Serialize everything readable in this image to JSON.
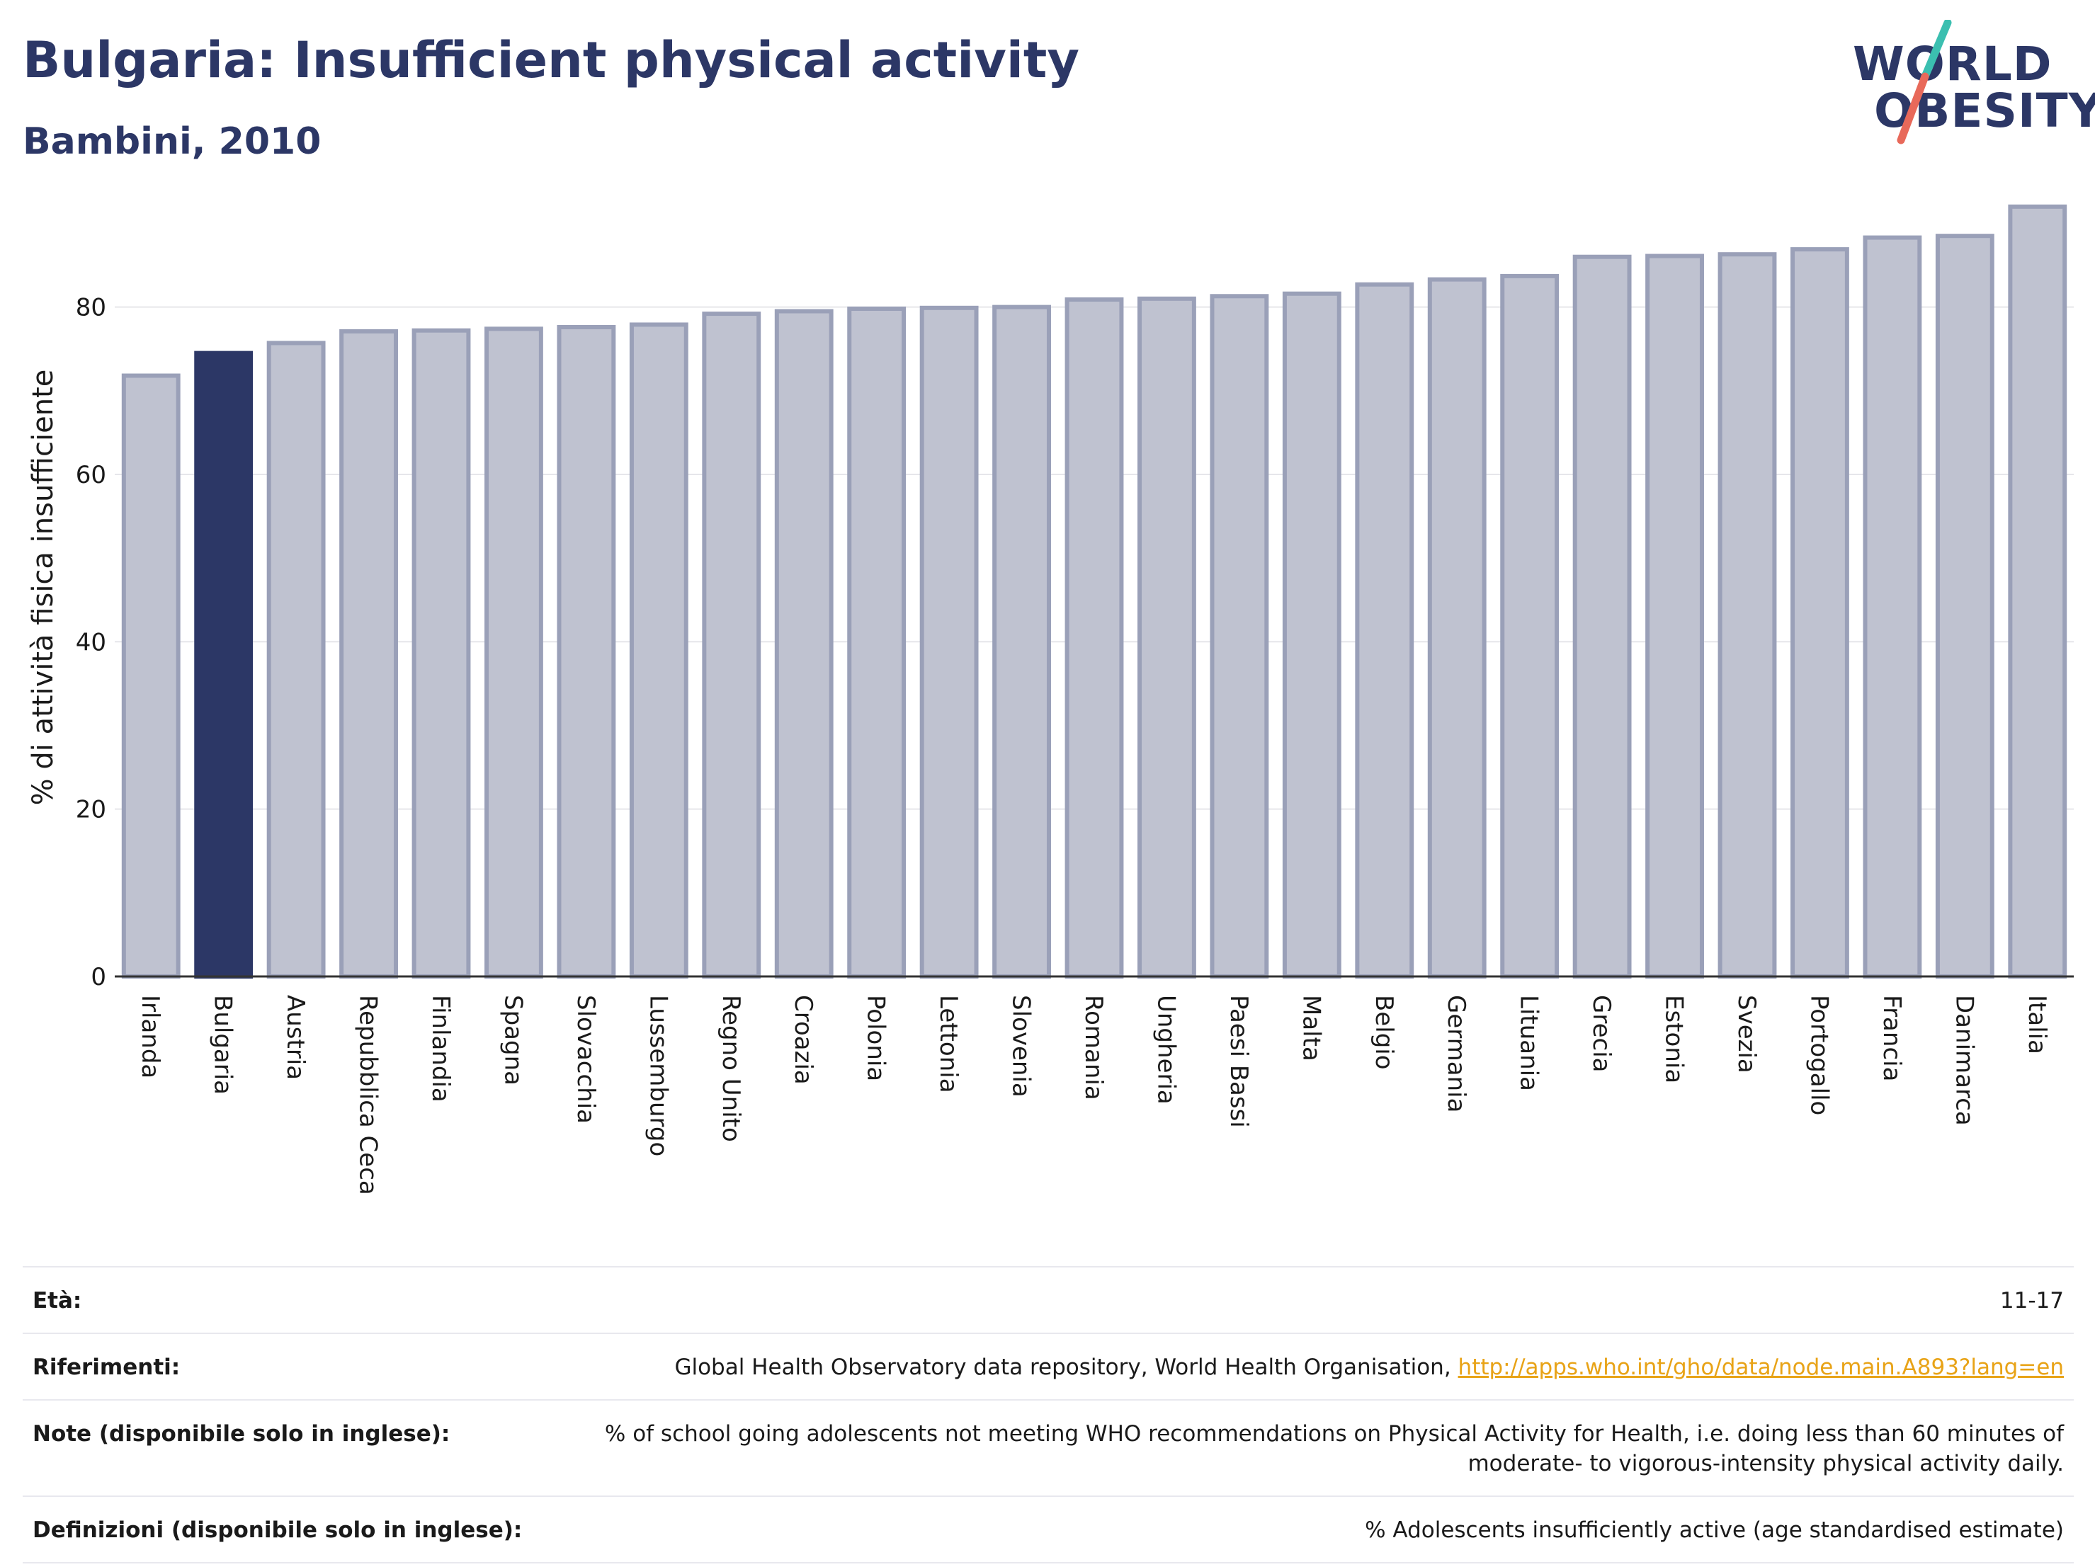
{
  "header": {
    "title": "Bulgaria: Insufficient physical activity",
    "subtitle": "Bambini, 2010"
  },
  "logo": {
    "line1": "WORLD",
    "line2": "OBESITY",
    "colors": {
      "teal": "#3bbfb0",
      "coral": "#e8695a",
      "navy": "#2c3766"
    }
  },
  "chart_data": {
    "type": "bar",
    "title": "Bulgaria: Insufficient physical activity",
    "subtitle": "Bambini, 2010",
    "ylabel": "% di attività fisica insufficiente",
    "xlabel": "",
    "ylim": [
      0,
      93
    ],
    "yticks": [
      0,
      20,
      40,
      60,
      80
    ],
    "grid": true,
    "highlight": "Bulgaria",
    "colors": {
      "bar": "#bfc2d0",
      "bar_edge": "#9aa0b8",
      "highlight": "#2c3766"
    },
    "categories": [
      "Irlanda",
      "Bulgaria",
      "Austria",
      "Repubblica Ceca",
      "Finlandia",
      "Spagna",
      "Slovacchia",
      "Lussemburgo",
      "Regno Unito",
      "Croazia",
      "Polonia",
      "Lettonia",
      "Slovenia",
      "Romania",
      "Ungheria",
      "Paesi Bassi",
      "Malta",
      "Belgio",
      "Germania",
      "Lituania",
      "Grecia",
      "Estonia",
      "Svezia",
      "Portogallo",
      "Francia",
      "Danimarca",
      "Italia"
    ],
    "values": [
      71.8,
      74.5,
      75.7,
      77.1,
      77.2,
      77.4,
      77.6,
      77.9,
      79.2,
      79.5,
      79.8,
      79.9,
      80.0,
      80.9,
      81.0,
      81.3,
      81.6,
      82.7,
      83.3,
      83.7,
      86.0,
      86.1,
      86.3,
      86.9,
      88.3,
      88.5,
      92.0
    ]
  },
  "meta": {
    "rows": [
      {
        "key": "Età:",
        "value": "11-17"
      },
      {
        "key": "Riferimenti:",
        "value": "Global Health Observatory data repository, World Health Organisation, ",
        "link": "http://apps.who.int/gho/data/node.main.A893?lang=en"
      },
      {
        "key": "Note (disponibile solo in inglese):",
        "value": "% of school going adolescents not meeting WHO recommendations on Physical Activity for Health, i.e. doing less than 60 minutes of moderate- to vigorous-intensity physical activity daily."
      },
      {
        "key": "Definizioni (disponibile solo in inglese):",
        "value": "% Adolescents insufficiently active (age standardised estimate)"
      }
    ]
  }
}
